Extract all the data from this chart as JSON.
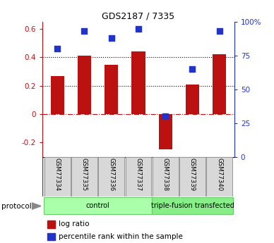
{
  "title": "GDS2187 / 7335",
  "samples": [
    "GSM77334",
    "GSM77335",
    "GSM77336",
    "GSM77337",
    "GSM77338",
    "GSM77339",
    "GSM77340"
  ],
  "log_ratios": [
    0.27,
    0.41,
    0.35,
    0.44,
    -0.25,
    0.21,
    0.42
  ],
  "percentile_ranks": [
    80,
    93,
    88,
    95,
    30,
    65,
    93
  ],
  "bar_color": "#bb1111",
  "dot_color": "#2233cc",
  "ylim_left": [
    -0.3,
    0.65
  ],
  "ylim_right": [
    0,
    100
  ],
  "yticks_left": [
    -0.2,
    0.0,
    0.2,
    0.4,
    0.6
  ],
  "yticks_right": [
    0,
    25,
    50,
    75,
    100
  ],
  "ytick_labels_left": [
    "-0.2",
    "0",
    "0.2",
    "0.4",
    "0.6"
  ],
  "ytick_labels_right": [
    "0",
    "25",
    "50",
    "75",
    "100%"
  ],
  "hlines_dotted": [
    0.2,
    0.4
  ],
  "hline_zero": 0.0,
  "groups": [
    {
      "label": "control",
      "indices": [
        0,
        1,
        2,
        3
      ],
      "color": "#aaffaa",
      "edge_color": "#66cc66"
    },
    {
      "label": "triple-fusion transfected",
      "indices": [
        4,
        5,
        6
      ],
      "color": "#88ee88",
      "edge_color": "#66cc66"
    }
  ],
  "protocol_label": "protocol",
  "legend_bar_label": "log ratio",
  "legend_dot_label": "percentile rank within the sample",
  "bg_color": "#ffffff",
  "bar_width": 0.5,
  "dot_size": 30
}
